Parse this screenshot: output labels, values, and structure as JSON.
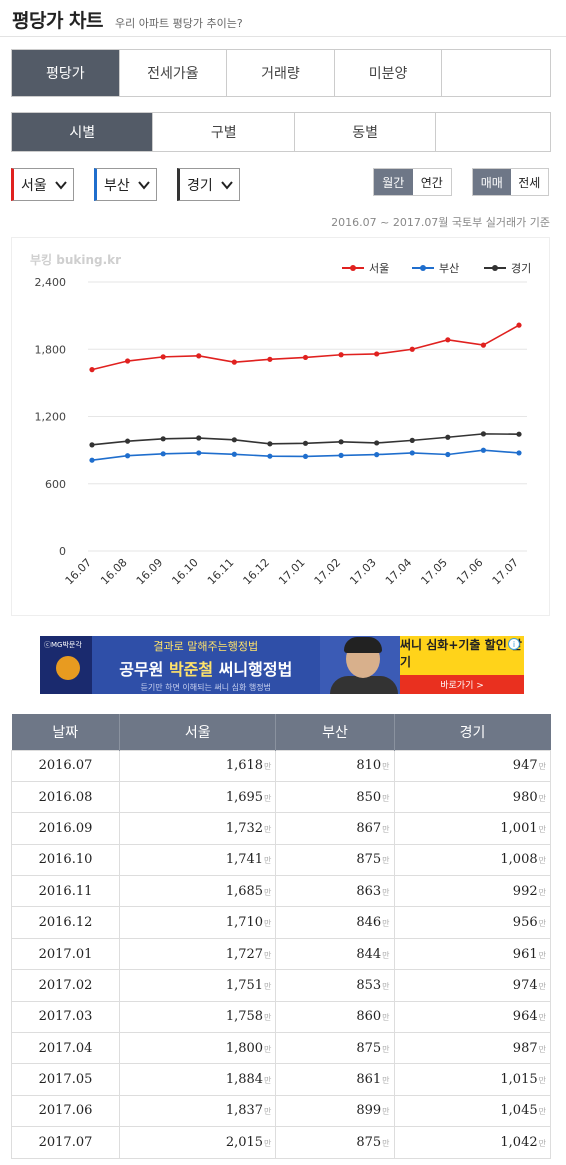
{
  "header": {
    "title": "평당가 차트",
    "subtitle": "우리 아파트 평당가 추이는?"
  },
  "tabs1": [
    "평당가",
    "전세가율",
    "거래량",
    "미분양",
    ""
  ],
  "tabs2": [
    "시별",
    "구별",
    "동별",
    ""
  ],
  "selects": {
    "a": "서울",
    "b": "부산",
    "c": "경기"
  },
  "colors": {
    "seoul": "#e0211f",
    "busan": "#1f6ecd",
    "gyeonggi": "#333333",
    "active": "#535b67"
  },
  "toggle1": [
    "월간",
    "연간"
  ],
  "toggle2": [
    "매매",
    "전세"
  ],
  "period": "2016.07 ~ 2017.07월 국토부 실거래가 기준",
  "ad": {
    "brand": "ⓒMG박문각",
    "line1": "결과로 말해주는행정법",
    "line2a": "공무원 ",
    "line2b": "박준철",
    "line2c": " 써니행정법",
    "line3": "듣기만 하면 이해되는 써니 심화 행정법",
    "cta": "써니 심화+기출 할인 받기",
    "button": "바로가기 >",
    "info": "i"
  },
  "chart_data": {
    "type": "line",
    "watermark": "부킹 buking.kr",
    "categories": [
      "16.07",
      "16.08",
      "16.09",
      "16.10",
      "16.11",
      "16.12",
      "17.01",
      "17.02",
      "17.03",
      "17.04",
      "17.05",
      "17.06",
      "17.07"
    ],
    "ylim": [
      0,
      2400
    ],
    "yticks": [
      "0",
      "600",
      "1,200",
      "1,800",
      "2,400"
    ],
    "grid": true,
    "legend_position": "top-right",
    "series": [
      {
        "name": "서울",
        "color": "#e0211f",
        "values": [
          1618,
          1695,
          1732,
          1741,
          1685,
          1710,
          1727,
          1751,
          1758,
          1800,
          1884,
          1837,
          2015
        ]
      },
      {
        "name": "부산",
        "color": "#1f6ecd",
        "values": [
          810,
          850,
          867,
          875,
          863,
          846,
          844,
          853,
          860,
          875,
          861,
          899,
          875
        ]
      },
      {
        "name": "경기",
        "color": "#333333",
        "values": [
          947,
          980,
          1001,
          1008,
          992,
          956,
          961,
          974,
          964,
          987,
          1015,
          1045,
          1042
        ]
      }
    ]
  },
  "table": {
    "headers": [
      "날짜",
      "서울",
      "부산",
      "경기"
    ],
    "unit": "만",
    "rows": [
      [
        "2016.07",
        "1,618",
        "810",
        "947"
      ],
      [
        "2016.08",
        "1,695",
        "850",
        "980"
      ],
      [
        "2016.09",
        "1,732",
        "867",
        "1,001"
      ],
      [
        "2016.10",
        "1,741",
        "875",
        "1,008"
      ],
      [
        "2016.11",
        "1,685",
        "863",
        "992"
      ],
      [
        "2016.12",
        "1,710",
        "846",
        "956"
      ],
      [
        "2017.01",
        "1,727",
        "844",
        "961"
      ],
      [
        "2017.02",
        "1,751",
        "853",
        "974"
      ],
      [
        "2017.03",
        "1,758",
        "860",
        "964"
      ],
      [
        "2017.04",
        "1,800",
        "875",
        "987"
      ],
      [
        "2017.05",
        "1,884",
        "861",
        "1,015"
      ],
      [
        "2017.06",
        "1,837",
        "899",
        "1,045"
      ],
      [
        "2017.07",
        "2,015",
        "875",
        "1,042"
      ]
    ]
  }
}
